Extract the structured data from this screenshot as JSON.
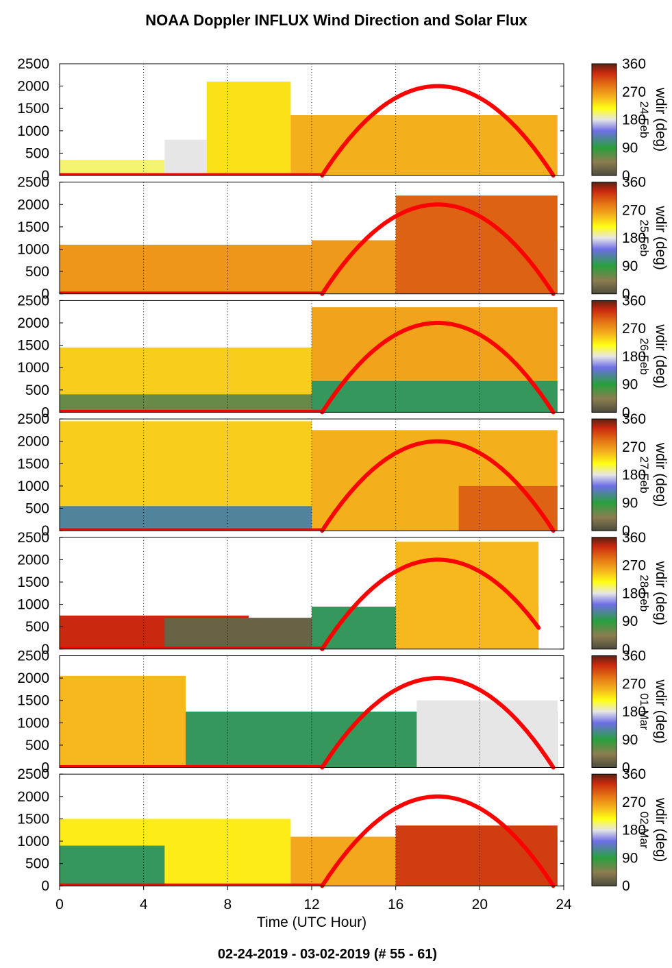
{
  "title": "NOAA Doppler INFLUX Wind Direction and Solar Flux",
  "footer": "02-24-2019 - 03-02-2019   (# 55 - 61)",
  "chart_data": {
    "type": "heatmap",
    "xlabel": "Time (UTC Hour)",
    "xlim": [
      0,
      24
    ],
    "x_ticks": [
      "0",
      "4",
      "8",
      "12",
      "16",
      "20",
      "24"
    ],
    "ylim": [
      0,
      2500
    ],
    "y_ticks": [
      "0",
      "500",
      "1000",
      "1500",
      "2000",
      "2500"
    ],
    "colorbar": {
      "label": "wdir (deg)",
      "range": [
        0,
        360
      ],
      "ticks": [
        "0",
        "90",
        "180",
        "270",
        "360"
      ],
      "colors": [
        "#4b4b3c",
        "#8c7d50",
        "#28a03c",
        "#6e6ee6",
        "#e6e6e6",
        "#ffff14",
        "#f5b41e",
        "#e67814",
        "#c8280f",
        "#5a2314"
      ]
    },
    "solar_flux_color": "#ff0000",
    "panels": [
      {
        "date": "24-Feb",
        "solar_flux": {
          "start_hour": 12.5,
          "peak_hour": 18.0,
          "end_hour": 23.5,
          "peak_height": 2000
        },
        "wdir_regions": [
          {
            "x": [
              0,
              5
            ],
            "top": 350,
            "wdir": 200
          },
          {
            "x": [
              5,
              7
            ],
            "top": 800,
            "wdir": 180
          },
          {
            "x": [
              7,
              11
            ],
            "top": 2100,
            "wdir": 230
          },
          {
            "x": [
              11,
              23.7
            ],
            "top": 1350,
            "wdir": 255
          }
        ]
      },
      {
        "date": "25-Feb",
        "solar_flux": {
          "start_hour": 12.5,
          "peak_hour": 18.0,
          "end_hour": 23.5,
          "peak_height": 2000
        },
        "wdir_regions": [
          {
            "x": [
              0,
              12
            ],
            "top": 1100,
            "wdir": 270
          },
          {
            "x": [
              12,
              23.7
            ],
            "top": 1200,
            "wdir": 268
          },
          {
            "x": [
              16,
              23.7
            ],
            "top": 2200,
            "wdir": 300
          }
        ]
      },
      {
        "date": "26-Feb",
        "solar_flux": {
          "start_hour": 12.5,
          "peak_hour": 18.0,
          "end_hour": 23.5,
          "peak_height": 2000
        },
        "wdir_regions": [
          {
            "x": [
              0,
              12
            ],
            "top": 1450,
            "wdir": 240
          },
          {
            "x": [
              0,
              12
            ],
            "top": 400,
            "wdir": 60
          },
          {
            "x": [
              12,
              23.7
            ],
            "top": 2350,
            "wdir": 262
          },
          {
            "x": [
              12,
              23.7
            ],
            "top": 700,
            "wdir": 100
          }
        ]
      },
      {
        "date": "27-Feb",
        "solar_flux": {
          "start_hour": 12.5,
          "peak_hour": 18.0,
          "end_hour": 23.5,
          "peak_height": 2000
        },
        "wdir_regions": [
          {
            "x": [
              0,
              12
            ],
            "top": 2450,
            "wdir": 240
          },
          {
            "x": [
              0,
              12
            ],
            "top": 550,
            "wdir": 120
          },
          {
            "x": [
              12,
              23.7
            ],
            "top": 2250,
            "wdir": 255
          },
          {
            "x": [
              19,
              23.7
            ],
            "top": 1000,
            "wdir": 300
          }
        ]
      },
      {
        "date": "28-Feb",
        "solar_flux": {
          "start_hour": 12.5,
          "peak_hour": 18.0,
          "end_hour": 22.8,
          "peak_height": 2000
        },
        "wdir_regions": [
          {
            "x": [
              0,
              9
            ],
            "top": 750,
            "wdir": 330
          },
          {
            "x": [
              5,
              12
            ],
            "top": 700,
            "wdir": 20
          },
          {
            "x": [
              12,
              22.8
            ],
            "top": 950,
            "wdir": 100
          },
          {
            "x": [
              16,
              22.8
            ],
            "top": 2400,
            "wdir": 250
          }
        ]
      },
      {
        "date": "01-Mar",
        "solar_flux": {
          "start_hour": 12.5,
          "peak_hour": 18.0,
          "end_hour": 23.5,
          "peak_height": 2000
        },
        "wdir_regions": [
          {
            "x": [
              0,
              23.7
            ],
            "top": 1250,
            "wdir": 100
          },
          {
            "x": [
              0,
              6
            ],
            "top": 2050,
            "wdir": 250
          },
          {
            "x": [
              17,
              23.7
            ],
            "top": 1500,
            "wdir": 180
          }
        ]
      },
      {
        "date": "02-Mar",
        "solar_flux": {
          "start_hour": 12.5,
          "peak_hour": 18.0,
          "end_hour": 23.5,
          "peak_height": 2000
        },
        "wdir_regions": [
          {
            "x": [
              0,
              11
            ],
            "top": 1500,
            "wdir": 225
          },
          {
            "x": [
              0,
              5
            ],
            "top": 900,
            "wdir": 100
          },
          {
            "x": [
              11,
              23.7
            ],
            "top": 1100,
            "wdir": 260
          },
          {
            "x": [
              16,
              23.7
            ],
            "top": 1350,
            "wdir": 320
          }
        ]
      }
    ]
  }
}
